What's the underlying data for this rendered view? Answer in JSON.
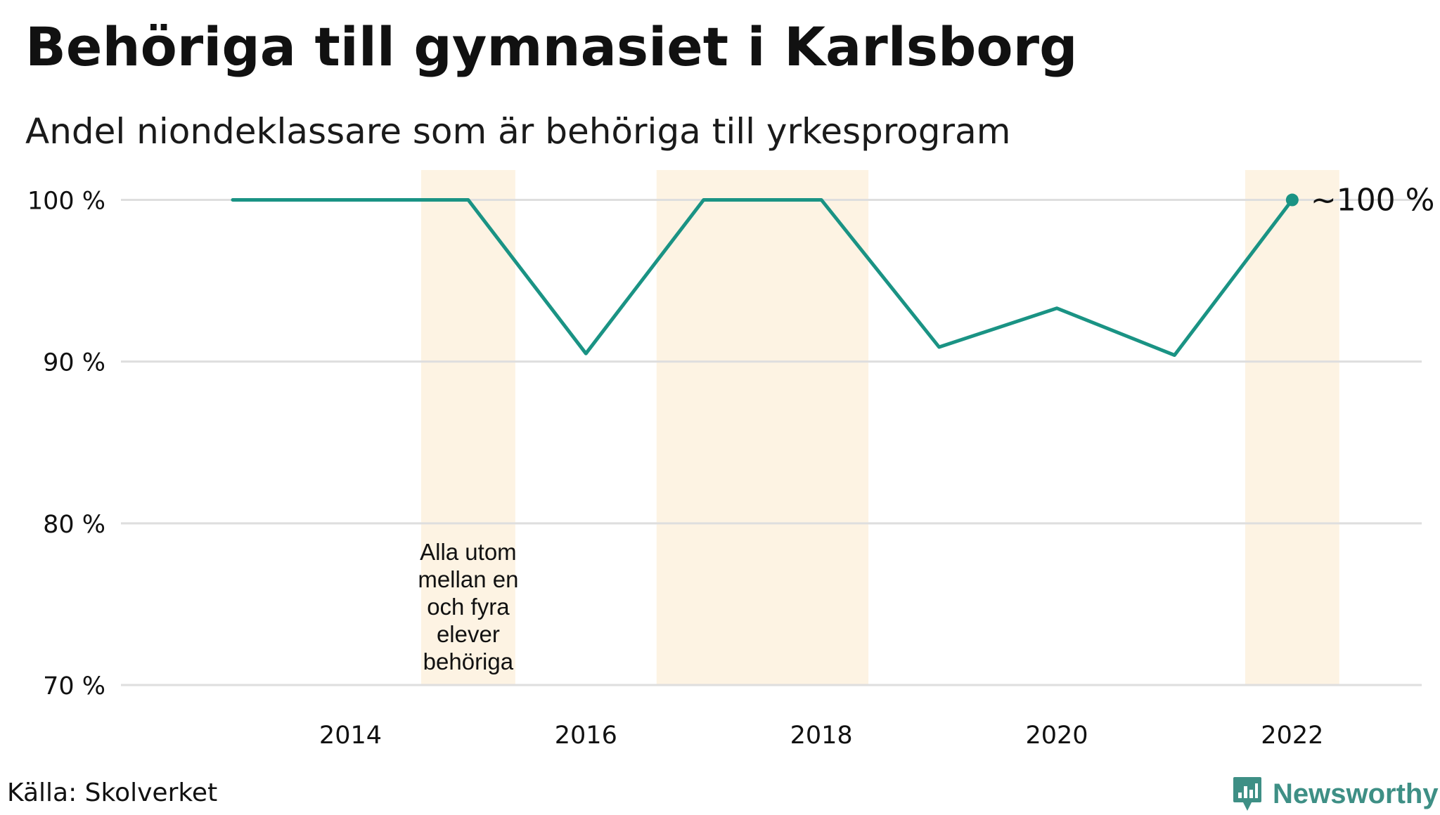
{
  "header": {
    "title": "Behöriga till gymnasiet i Karlsborg",
    "subtitle": "Andel niondeklassare som är behöriga till yrkesprogram"
  },
  "footer": {
    "source": "Källa: Skolverket",
    "brand": "Newsworthy"
  },
  "colors": {
    "line": "#1a9384",
    "highlight": "#fdf3e3",
    "grid": "#dedede",
    "brand": "#3e8f85"
  },
  "chart_data": {
    "type": "line",
    "title": "Behöriga till gymnasiet i Karlsborg",
    "subtitle": "Andel niondeklassare som är behöriga till yrkesprogram",
    "xlabel": "",
    "ylabel": "",
    "x": [
      2013,
      2014,
      2015,
      2016,
      2017,
      2018,
      2019,
      2020,
      2021,
      2022
    ],
    "series": [
      {
        "values": [
          100,
          100,
          100,
          90.5,
          100,
          100,
          90.9,
          93.3,
          90.4,
          100
        ]
      }
    ],
    "xlim": [
      2012.05,
      2023.1
    ],
    "ylim": [
      70,
      101.5
    ],
    "x_ticks": [
      2014,
      2016,
      2018,
      2020,
      2022
    ],
    "x_tick_labels": [
      "2014",
      "2016",
      "2018",
      "2020",
      "2022"
    ],
    "y_ticks": [
      70,
      80,
      90,
      100
    ],
    "y_tick_labels": [
      "70 %",
      "80 %",
      "90 %",
      "100 %"
    ],
    "highlight_years": [
      2015,
      2017,
      2018,
      2022
    ],
    "annotation": {
      "year": 2015,
      "lines": [
        "Alla utom",
        "mellan en",
        "och fyra",
        "elever",
        "behöriga"
      ]
    },
    "end_label": "~100 %",
    "grid": true,
    "legend": "none"
  }
}
